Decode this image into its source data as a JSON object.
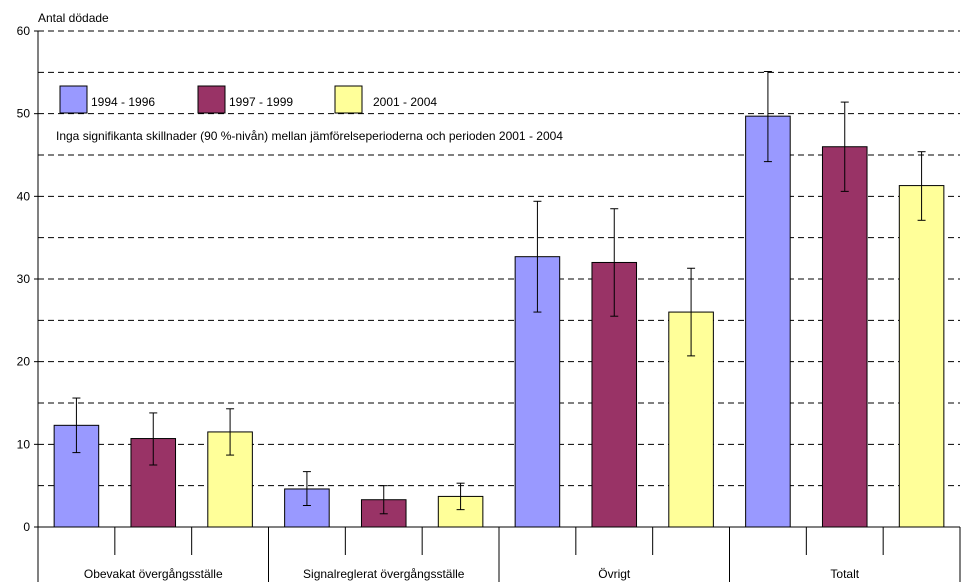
{
  "chart_data": {
    "type": "bar",
    "ylabel": "Antal dödade",
    "ylim": [
      0,
      60
    ],
    "yticks": [
      0,
      10,
      20,
      30,
      40,
      50,
      60
    ],
    "grid": true,
    "gridlines": [
      5,
      10,
      15,
      20,
      25,
      30,
      35,
      40,
      45,
      50,
      55,
      60
    ],
    "categories": [
      "Obevakat övergångsställe",
      "Signalreglerat övergångsställe",
      "Övrigt",
      "Totalt"
    ],
    "annotation": "Inga signifikanta skillnader (90 %-nivån) mellan jämförelseperioderna och perioden 2001 - 2004",
    "legend_position": "top-left",
    "series": [
      {
        "name": "1994 - 1996",
        "color": "#9999ff",
        "values": [
          12.3,
          4.6,
          32.7,
          49.7
        ],
        "err_low": [
          9.0,
          2.6,
          26.0,
          44.2
        ],
        "err_high": [
          15.6,
          6.7,
          39.4,
          55.1
        ]
      },
      {
        "name": "1997 - 1999",
        "color": "#993366",
        "values": [
          10.7,
          3.3,
          32.0,
          46.0
        ],
        "err_low": [
          7.5,
          1.6,
          25.5,
          40.6
        ],
        "err_high": [
          13.8,
          5.0,
          38.5,
          51.4
        ]
      },
      {
        "name": "2001 - 2004",
        "color": "#ffff99",
        "values": [
          11.5,
          3.7,
          26.0,
          41.3
        ],
        "err_low": [
          8.7,
          2.1,
          20.7,
          37.1
        ],
        "err_high": [
          14.3,
          5.3,
          31.3,
          45.4
        ]
      }
    ]
  }
}
